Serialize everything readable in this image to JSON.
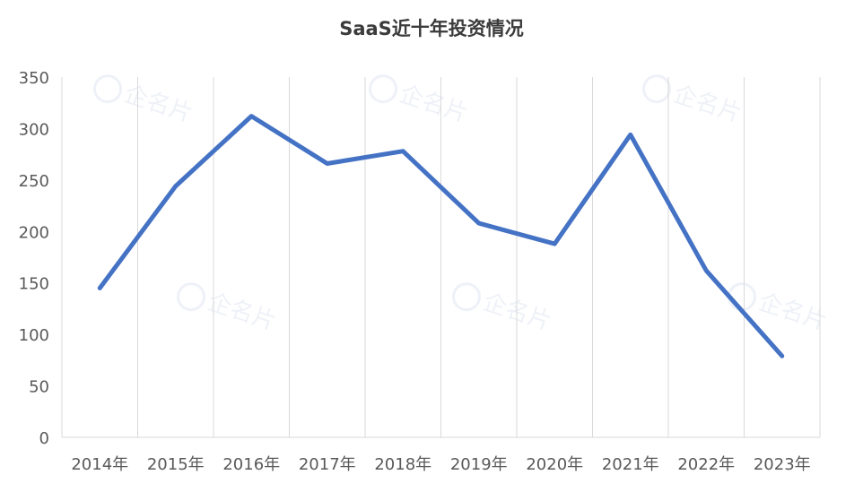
{
  "chart_data": {
    "type": "line",
    "title": "SaaS近十年投资情况",
    "categories": [
      "2014年",
      "2015年",
      "2016年",
      "2017年",
      "2018年",
      "2019年",
      "2020年",
      "2021年",
      "2022年",
      "2023年"
    ],
    "series": [
      {
        "values": [
          145,
          244,
          312,
          266,
          278,
          208,
          188,
          294,
          162,
          79
        ]
      }
    ],
    "ylim": [
      0,
      350
    ],
    "yticks": [
      0,
      50,
      100,
      150,
      200,
      250,
      300,
      350
    ],
    "grid": "vertical",
    "line_color": "#4472c4",
    "grid_color": "#d9d9d9",
    "watermark": "企名片"
  }
}
